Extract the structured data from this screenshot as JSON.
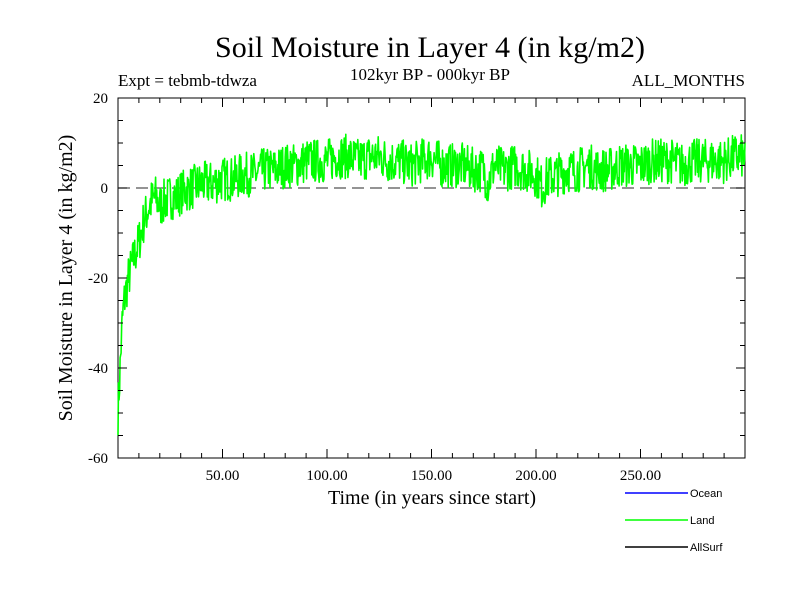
{
  "chart_data": {
    "type": "line",
    "title": "Soil Moisture in Layer 4 (in kg/m2)",
    "subtitle": "102kyr BP - 000kyr BP",
    "left_note": "Expt = tebmb-tdwza",
    "right_note": "ALL_MONTHS",
    "xlabel": "Time (in years since start)",
    "ylabel": "Soil Moisture in Layer 4 (in kg/m2)",
    "xlim": [
      0,
      300
    ],
    "ylim": [
      -60,
      20
    ],
    "x_ticks": [
      50,
      100,
      150,
      200,
      250
    ],
    "x_tick_labels": [
      "50.00",
      "100.00",
      "150.00",
      "200.00",
      "250.00"
    ],
    "y_ticks": [
      -60,
      -40,
      -20,
      0,
      20
    ],
    "y_tick_labels": [
      "-60",
      "-40",
      "-20",
      "0",
      "20"
    ],
    "reference_line": {
      "y": 0,
      "style": "dashed"
    },
    "series": [
      {
        "name": "Ocean",
        "color": "#0000ff",
        "x": [],
        "values": []
      },
      {
        "name": "Land",
        "color": "#00ff00",
        "x": [
          0,
          1,
          2,
          3,
          5,
          8,
          10,
          12,
          14,
          16,
          18,
          20,
          22,
          25,
          28,
          30,
          35,
          40,
          45,
          50,
          55,
          60,
          65,
          70,
          75,
          80,
          85,
          90,
          95,
          100,
          105,
          110,
          115,
          120,
          125,
          130,
          135,
          140,
          145,
          150,
          155,
          160,
          165,
          170,
          175,
          177,
          180,
          185,
          190,
          195,
          200,
          203,
          205,
          210,
          215,
          220,
          225,
          230,
          235,
          240,
          245,
          250,
          255,
          260,
          265,
          270,
          275,
          280,
          285,
          290,
          295,
          300
        ],
        "values": [
          -50,
          -40,
          -30,
          -25,
          -20,
          -15,
          -12,
          -8,
          -5,
          -3,
          -2,
          -4,
          -3,
          -2,
          -2,
          -1,
          0,
          1,
          1,
          2,
          2,
          3,
          3,
          4,
          4,
          5,
          5,
          6,
          6,
          6,
          7,
          7,
          6,
          7,
          7,
          6,
          6,
          5,
          6,
          7,
          5,
          5,
          5,
          4,
          4,
          1,
          5,
          4,
          5,
          4,
          3,
          0,
          2,
          3,
          4,
          4,
          5,
          4,
          4,
          5,
          5,
          5,
          6,
          6,
          6,
          5,
          6,
          6,
          6,
          6,
          7,
          7
        ],
        "noise_amplitude": 5
      },
      {
        "name": "AllSurf",
        "color": "#000000",
        "x": [],
        "values": []
      }
    ],
    "legend_position": "bottom-right"
  }
}
